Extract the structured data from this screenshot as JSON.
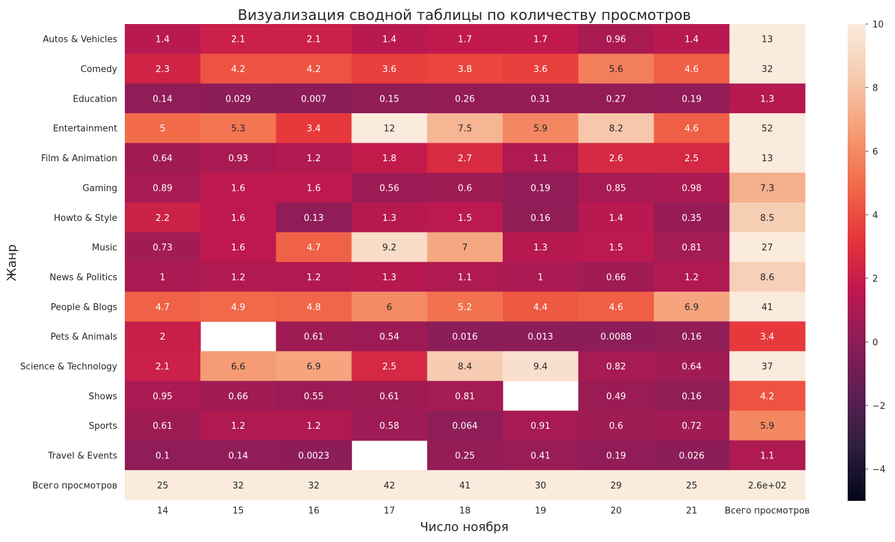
{
  "chart_data": {
    "type": "heatmap",
    "title": "Визуализация сводной таблицы по количеству просмотров",
    "xlabel": "Число ноября",
    "ylabel": "Жанр",
    "x_categories": [
      "14",
      "15",
      "16",
      "17",
      "18",
      "19",
      "20",
      "21",
      "Всего просмотров"
    ],
    "y_categories": [
      "Autos & Vehicles",
      "Comedy",
      "Education",
      "Entertainment",
      "Film & Animation",
      "Gaming",
      "Howto & Style",
      "Music",
      "News & Politics",
      "People & Blogs",
      "Pets & Animals",
      "Science & Technology",
      "Shows",
      "Sports",
      "Travel & Events",
      "Всего просмотров"
    ],
    "values": [
      [
        1.4,
        2.1,
        2.1,
        1.4,
        1.7,
        1.7,
        0.96,
        1.4,
        13
      ],
      [
        2.3,
        4.2,
        4.2,
        3.6,
        3.8,
        3.6,
        5.6,
        4.6,
        32
      ],
      [
        0.14,
        0.029,
        0.007,
        0.15,
        0.26,
        0.31,
        0.27,
        0.19,
        1.3
      ],
      [
        5,
        5.3,
        3.4,
        12,
        7.5,
        5.9,
        8.2,
        4.6,
        52
      ],
      [
        0.64,
        0.93,
        1.2,
        1.8,
        2.7,
        1.1,
        2.6,
        2.5,
        13
      ],
      [
        0.89,
        1.6,
        1.6,
        0.56,
        0.6,
        0.19,
        0.85,
        0.98,
        7.3
      ],
      [
        2.2,
        1.6,
        0.13,
        1.3,
        1.5,
        0.16,
        1.4,
        0.35,
        8.5
      ],
      [
        0.73,
        1.6,
        4.7,
        9.2,
        7,
        1.3,
        1.5,
        0.81,
        27
      ],
      [
        1,
        1.2,
        1.2,
        1.3,
        1.1,
        1,
        0.66,
        1.2,
        8.6
      ],
      [
        4.7,
        4.9,
        4.8,
        6,
        5.2,
        4.4,
        4.6,
        6.9,
        41
      ],
      [
        2,
        null,
        0.61,
        0.54,
        0.016,
        0.013,
        0.0088,
        0.16,
        3.4
      ],
      [
        2.1,
        6.6,
        6.9,
        2.5,
        8.4,
        9.4,
        0.82,
        0.64,
        37
      ],
      [
        0.95,
        0.66,
        0.55,
        0.61,
        0.81,
        null,
        0.49,
        0.16,
        4.2
      ],
      [
        0.61,
        1.2,
        1.2,
        0.58,
        0.064,
        0.91,
        0.6,
        0.72,
        5.9
      ],
      [
        0.1,
        0.14,
        0.0023,
        null,
        0.25,
        0.41,
        0.19,
        0.026,
        1.1
      ],
      [
        25,
        32,
        32,
        42,
        41,
        30,
        29,
        25,
        260
      ]
    ],
    "cell_labels": [
      [
        "1.4",
        "2.1",
        "2.1",
        "1.4",
        "1.7",
        "1.7",
        "0.96",
        "1.4",
        "13"
      ],
      [
        "2.3",
        "4.2",
        "4.2",
        "3.6",
        "3.8",
        "3.6",
        "5.6",
        "4.6",
        "32"
      ],
      [
        "0.14",
        "0.029",
        "0.007",
        "0.15",
        "0.26",
        "0.31",
        "0.27",
        "0.19",
        "1.3"
      ],
      [
        "5",
        "5.3",
        "3.4",
        "12",
        "7.5",
        "5.9",
        "8.2",
        "4.6",
        "52"
      ],
      [
        "0.64",
        "0.93",
        "1.2",
        "1.8",
        "2.7",
        "1.1",
        "2.6",
        "2.5",
        "13"
      ],
      [
        "0.89",
        "1.6",
        "1.6",
        "0.56",
        "0.6",
        "0.19",
        "0.85",
        "0.98",
        "7.3"
      ],
      [
        "2.2",
        "1.6",
        "0.13",
        "1.3",
        "1.5",
        "0.16",
        "1.4",
        "0.35",
        "8.5"
      ],
      [
        "0.73",
        "1.6",
        "4.7",
        "9.2",
        "7",
        "1.3",
        "1.5",
        "0.81",
        "27"
      ],
      [
        "1",
        "1.2",
        "1.2",
        "1.3",
        "1.1",
        "1",
        "0.66",
        "1.2",
        "8.6"
      ],
      [
        "4.7",
        "4.9",
        "4.8",
        "6",
        "5.2",
        "4.4",
        "4.6",
        "6.9",
        "41"
      ],
      [
        "2",
        "",
        "0.61",
        "0.54",
        "0.016",
        "0.013",
        "0.0088",
        "0.16",
        "3.4"
      ],
      [
        "2.1",
        "6.6",
        "6.9",
        "2.5",
        "8.4",
        "9.4",
        "0.82",
        "0.64",
        "37"
      ],
      [
        "0.95",
        "0.66",
        "0.55",
        "0.61",
        "0.81",
        "",
        "0.49",
        "0.16",
        "4.2"
      ],
      [
        "0.61",
        "1.2",
        "1.2",
        "0.58",
        "0.064",
        "0.91",
        "0.6",
        "0.72",
        "5.9"
      ],
      [
        "0.1",
        "0.14",
        "0.0023",
        "",
        "0.25",
        "0.41",
        "0.19",
        "0.026",
        "1.1"
      ],
      [
        "25",
        "32",
        "32",
        "42",
        "41",
        "30",
        "29",
        "25",
        "2.6e+02"
      ]
    ],
    "color_range": [
      -5,
      10
    ],
    "colorbar_ticks": [
      10,
      8,
      6,
      4,
      2,
      0,
      -2,
      -4
    ],
    "colorbar_tick_labels": [
      "10",
      "8",
      "6",
      "4",
      "2",
      "0",
      "−2",
      "−4"
    ],
    "colormap": "rocket",
    "colormap_stops": [
      "#03051a",
      "#2d1e3e",
      "#5c1e51",
      "#8c1d58",
      "#c0184e",
      "#e7373a",
      "#f26c4a",
      "#f59e76",
      "#f6cbb0",
      "#faebdd"
    ]
  }
}
